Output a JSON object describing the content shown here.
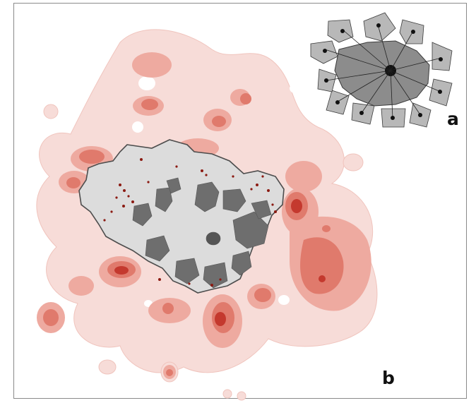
{
  "figure": {
    "panel_a_label": "a",
    "panel_b_label": "b"
  },
  "colors": {
    "density_low": "#f7dcd8",
    "density_mid": "#eeaaa0",
    "density_high": "#e07a6c",
    "density_core": "#d0574a",
    "density_peak": "#c4392e",
    "city_fill": "#dcdcdc",
    "district_fill": "#6e6e6e",
    "boundary_stroke": "#4d4d4d",
    "hotspot_dot": "#8b1a12",
    "frame_border": "#8a8a8a"
  },
  "legend": []
}
